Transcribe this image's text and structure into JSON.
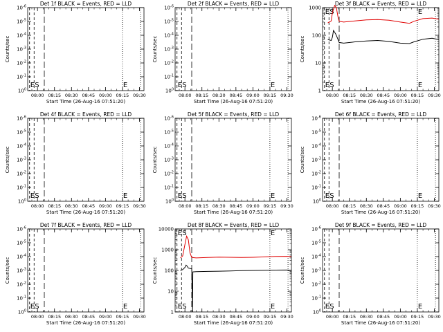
{
  "chart_data": [
    {
      "type": "line",
      "title": "Det 1f BLACK = Events, RED = LLD",
      "xlabel": "Start Time (26-Aug-16 07:51:20)",
      "ylabel": "Counts/sec",
      "y_scale": "log",
      "x_ticks": [
        "08:00",
        "08:15",
        "08:30",
        "08:45",
        "09:00",
        "09:15",
        "09:30"
      ],
      "y_ticks": [
        "10^0",
        "10^-1",
        "10^-2",
        "10^-3",
        "10^-4",
        "10^-5",
        "10^-6"
      ],
      "xlim": [
        "07:51:20",
        "09:34:00"
      ],
      "ylim": [
        1,
        1e-06
      ],
      "markers": [
        {
          "label": "E",
          "time": "07:53:00",
          "style": "dash"
        },
        {
          "label": "S",
          "time": "07:57:00",
          "style": "dash"
        },
        {
          "label": "",
          "time": "08:06:00",
          "style": "longdash"
        },
        {
          "label": "E",
          "time": "09:15:00",
          "style": "dotted"
        },
        {
          "label": "",
          "time": "09:31:00",
          "style": "dotted"
        }
      ],
      "series": []
    },
    {
      "type": "line",
      "title": "Det 2f BLACK = Events, RED = LLD",
      "xlabel": "Start Time (26-Aug-16 07:51:20)",
      "ylabel": "Counts/sec",
      "y_scale": "log",
      "x_ticks": [
        "08:00",
        "08:15",
        "08:30",
        "08:45",
        "09:00",
        "09:15",
        "09:30"
      ],
      "y_ticks": [
        "10^0",
        "10^-1",
        "10^-2",
        "10^-3",
        "10^-4",
        "10^-5",
        "10^-6"
      ],
      "xlim": [
        "07:51:20",
        "09:34:00"
      ],
      "ylim": [
        1,
        1e-06
      ],
      "markers": [
        {
          "label": "E",
          "time": "07:53:00",
          "style": "dash"
        },
        {
          "label": "S",
          "time": "07:57:00",
          "style": "dash"
        },
        {
          "label": "",
          "time": "08:06:00",
          "style": "longdash"
        },
        {
          "label": "E",
          "time": "09:15:00",
          "style": "dotted"
        },
        {
          "label": "",
          "time": "09:31:00",
          "style": "dotted"
        }
      ],
      "series": []
    },
    {
      "type": "line",
      "title": "Det 3f BLACK = Events, RED = LLD",
      "xlabel": "Start Time (26-Aug-16 07:51:20)",
      "ylabel": "Counts/sec",
      "y_scale": "log",
      "x_ticks": [
        "08:00",
        "08:15",
        "08:30",
        "08:45",
        "09:00",
        "09:15",
        "09:30"
      ],
      "y_ticks": [
        "1000",
        "100",
        "10",
        "1"
      ],
      "xlim": [
        "07:51:20",
        "09:34:00"
      ],
      "ylim": [
        1,
        1000
      ],
      "markers": [
        {
          "label": "E",
          "time": "07:53:00",
          "style": "dash"
        },
        {
          "label": "S",
          "time": "07:57:00",
          "style": "dash"
        },
        {
          "label": "",
          "time": "08:06:00",
          "style": "longdash"
        },
        {
          "label": "E",
          "time": "09:15:00",
          "style": "dotted"
        },
        {
          "label": "",
          "time": "09:31:00",
          "style": "dotted"
        }
      ],
      "series": [
        {
          "name": "LLD",
          "color": "#e00000",
          "x": [
            "07:56:00",
            "07:59:00",
            "08:00:00",
            "08:02:00",
            "08:03:30",
            "08:05:00",
            "08:06:00",
            "08:10:00",
            "08:20:00",
            "08:30:00",
            "08:40:00",
            "08:50:00",
            "09:00:00",
            "09:08:00",
            "09:12:00",
            "09:20:00",
            "09:28:00",
            "09:34:00"
          ],
          "y": [
            280,
            330,
            650,
            1200,
            1000,
            450,
            320,
            300,
            330,
            360,
            370,
            350,
            300,
            270,
            320,
            400,
            420,
            380
          ]
        },
        {
          "name": "Events",
          "color": "#000000",
          "x": [
            "07:56:00",
            "07:59:00",
            "08:00:00",
            "08:01:00",
            "08:03:00",
            "08:05:00",
            "08:06:00",
            "08:10:00",
            "08:20:00",
            "08:30:00",
            "08:40:00",
            "08:50:00",
            "09:00:00",
            "09:08:00",
            "09:12:00",
            "09:20:00",
            "09:28:00",
            "09:34:00"
          ],
          "y": [
            70,
            65,
            85,
            150,
            110,
            70,
            55,
            52,
            58,
            62,
            65,
            60,
            52,
            50,
            58,
            72,
            78,
            70
          ]
        }
      ]
    },
    {
      "type": "line",
      "title": "Det 4f BLACK = Events, RED = LLD",
      "xlabel": "Start Time (26-Aug-16 07:51:20)",
      "ylabel": "Counts/sec",
      "y_scale": "log",
      "x_ticks": [
        "08:00",
        "08:15",
        "08:30",
        "08:45",
        "09:00",
        "09:15",
        "09:30"
      ],
      "y_ticks": [
        "10^0",
        "10^-1",
        "10^-2",
        "10^-3",
        "10^-4",
        "10^-5",
        "10^-6"
      ],
      "xlim": [
        "07:51:20",
        "09:34:00"
      ],
      "ylim": [
        1,
        1e-06
      ],
      "markers": [
        {
          "label": "E",
          "time": "07:53:00",
          "style": "dash"
        },
        {
          "label": "S",
          "time": "07:57:00",
          "style": "dash"
        },
        {
          "label": "",
          "time": "08:06:00",
          "style": "longdash"
        },
        {
          "label": "E",
          "time": "09:15:00",
          "style": "dotted"
        },
        {
          "label": "",
          "time": "09:31:00",
          "style": "dotted"
        }
      ],
      "series": []
    },
    {
      "type": "line",
      "title": "Det 5f BLACK = Events, RED = LLD",
      "xlabel": "Start Time (26-Aug-16 07:51:20)",
      "ylabel": "Counts/sec",
      "y_scale": "log",
      "x_ticks": [
        "08:00",
        "08:15",
        "08:30",
        "08:45",
        "09:00",
        "09:15",
        "09:30"
      ],
      "y_ticks": [
        "10^0",
        "10^-1",
        "10^-2",
        "10^-3",
        "10^-4",
        "10^-5",
        "10^-6"
      ],
      "xlim": [
        "07:51:20",
        "09:34:00"
      ],
      "ylim": [
        1,
        1e-06
      ],
      "markers": [
        {
          "label": "E",
          "time": "07:53:00",
          "style": "dash"
        },
        {
          "label": "S",
          "time": "07:57:00",
          "style": "dash"
        },
        {
          "label": "",
          "time": "08:06:00",
          "style": "longdash"
        },
        {
          "label": "E",
          "time": "09:15:00",
          "style": "dotted"
        },
        {
          "label": "",
          "time": "09:31:00",
          "style": "dotted"
        }
      ],
      "series": []
    },
    {
      "type": "line",
      "title": "Det 6f BLACK = Events, RED = LLD",
      "xlabel": "Start Time (26-Aug-16 07:51:20)",
      "ylabel": "Counts/sec",
      "y_scale": "log",
      "x_ticks": [
        "08:00",
        "08:15",
        "08:30",
        "08:45",
        "09:00",
        "09:15",
        "09:30"
      ],
      "y_ticks": [
        "10^0",
        "10^-1",
        "10^-2",
        "10^-3",
        "10^-4",
        "10^-5",
        "10^-6"
      ],
      "xlim": [
        "07:51:20",
        "09:34:00"
      ],
      "ylim": [
        1,
        1e-06
      ],
      "markers": [
        {
          "label": "E",
          "time": "07:53:00",
          "style": "dash"
        },
        {
          "label": "S",
          "time": "07:57:00",
          "style": "dash"
        },
        {
          "label": "",
          "time": "08:06:00",
          "style": "longdash"
        },
        {
          "label": "E",
          "time": "09:15:00",
          "style": "dotted"
        },
        {
          "label": "",
          "time": "09:31:00",
          "style": "dotted"
        }
      ],
      "series": []
    },
    {
      "type": "line",
      "title": "Det 7f BLACK = Events, RED = LLD",
      "xlabel": "Start Time (26-Aug-16 07:51:20)",
      "ylabel": "Counts/sec",
      "y_scale": "log",
      "x_ticks": [
        "08:00",
        "08:15",
        "08:30",
        "08:45",
        "09:00",
        "09:15",
        "09:30"
      ],
      "y_ticks": [
        "10^0",
        "10^-1",
        "10^-2",
        "10^-3",
        "10^-4",
        "10^-5",
        "10^-6"
      ],
      "xlim": [
        "07:51:20",
        "09:34:00"
      ],
      "ylim": [
        1,
        1e-06
      ],
      "markers": [
        {
          "label": "E",
          "time": "07:53:00",
          "style": "dash"
        },
        {
          "label": "S",
          "time": "07:57:00",
          "style": "dash"
        },
        {
          "label": "",
          "time": "08:06:00",
          "style": "longdash"
        },
        {
          "label": "E",
          "time": "09:15:00",
          "style": "dotted"
        },
        {
          "label": "",
          "time": "09:31:00",
          "style": "dotted"
        }
      ],
      "series": []
    },
    {
      "type": "line",
      "title": "Det 8f BLACK = Events, RED = LLD",
      "xlabel": "Start Time (26-Aug-16 07:51:20)",
      "ylabel": "Counts/sec",
      "y_scale": "log",
      "x_ticks": [
        "08:00",
        "08:15",
        "08:30",
        "08:45",
        "09:00",
        "09:15",
        "09:30"
      ],
      "y_ticks": [
        "10000",
        "1000",
        "100",
        "10",
        "1"
      ],
      "xlim": [
        "07:51:20",
        "09:34:00"
      ],
      "ylim": [
        1,
        10000
      ],
      "markers": [
        {
          "label": "E",
          "time": "07:53:00",
          "style": "dash"
        },
        {
          "label": "S",
          "time": "07:57:00",
          "style": "dash"
        },
        {
          "label": "",
          "time": "08:06:00",
          "style": "longdash"
        },
        {
          "label": "E",
          "time": "09:15:00",
          "style": "dotted"
        },
        {
          "label": "",
          "time": "09:31:00",
          "style": "dotted"
        }
      ],
      "series": [
        {
          "name": "LLD",
          "color": "#e00000",
          "x": [
            "07:56:00",
            "07:58:00",
            "08:00:00",
            "08:01:30",
            "08:03:00",
            "08:04:30",
            "08:06:00",
            "08:10:00",
            "08:20:00",
            "08:30:00",
            "08:40:00",
            "08:50:00",
            "09:00:00",
            "09:10:00",
            "09:20:00",
            "09:30:00",
            "09:34:00"
          ],
          "y": [
            400,
            500,
            1800,
            4500,
            3000,
            700,
            420,
            400,
            420,
            440,
            430,
            420,
            430,
            450,
            470,
            480,
            460
          ]
        },
        {
          "name": "Events",
          "color": "#000000",
          "x": [
            "07:56:00",
            "07:58:00",
            "08:00:00",
            "08:01:00",
            "08:02:00",
            "08:03:00",
            "08:06:00",
            "08:06:40",
            "08:07:00",
            "08:10:00",
            "08:20:00",
            "08:30:00",
            "08:40:00",
            "08:50:00",
            "09:00:00",
            "09:10:00",
            "09:20:00",
            "09:30:00",
            "09:34:00"
          ],
          "y": [
            100,
            110,
            140,
            180,
            160,
            130,
            120,
            1,
            85,
            88,
            90,
            92,
            95,
            98,
            100,
            102,
            104,
            105,
            103
          ]
        }
      ]
    },
    {
      "type": "line",
      "title": "Det 9f BLACK = Events, RED = LLD",
      "xlabel": "Start Time (26-Aug-16 07:51:20)",
      "ylabel": "Counts/sec",
      "y_scale": "log",
      "x_ticks": [
        "08:00",
        "08:15",
        "08:30",
        "08:45",
        "09:00",
        "09:15",
        "09:30"
      ],
      "y_ticks": [
        "10^0",
        "10^-1",
        "10^-2",
        "10^-3",
        "10^-4",
        "10^-5",
        "10^-6"
      ],
      "xlim": [
        "07:51:20",
        "09:34:00"
      ],
      "ylim": [
        1,
        1e-06
      ],
      "markers": [
        {
          "label": "E",
          "time": "07:53:00",
          "style": "dash"
        },
        {
          "label": "S",
          "time": "07:57:00",
          "style": "dash"
        },
        {
          "label": "",
          "time": "08:06:00",
          "style": "longdash"
        },
        {
          "label": "E",
          "time": "09:15:00",
          "style": "dotted"
        },
        {
          "label": "",
          "time": "09:31:00",
          "style": "dotted"
        }
      ],
      "series": []
    }
  ]
}
